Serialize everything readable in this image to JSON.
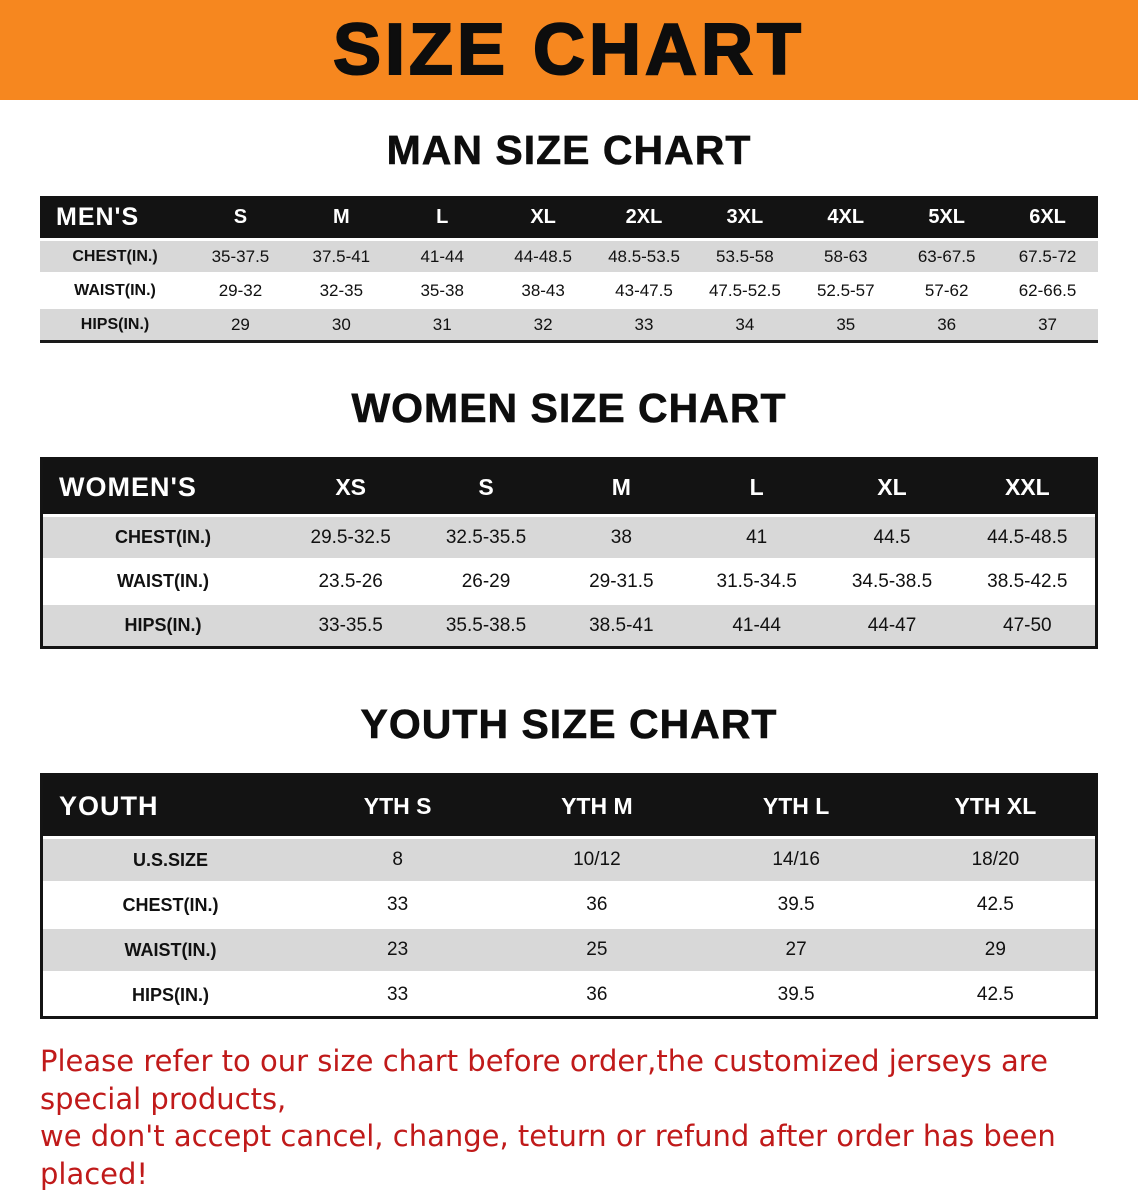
{
  "banner": {
    "title": "SIZE CHART"
  },
  "sections": [
    {
      "id": "men",
      "heading": "MAN SIZE CHART",
      "header": [
        "MEN'S",
        "S",
        "M",
        "L",
        "XL",
        "2XL",
        "3XL",
        "4XL",
        "5XL",
        "6XL"
      ],
      "rows": [
        [
          "CHEST(IN.)",
          "35-37.5",
          "37.5-41",
          "41-44",
          "44-48.5",
          "48.5-53.5",
          "53.5-58",
          "58-63",
          "63-67.5",
          "67.5-72"
        ],
        [
          "WAIST(IN.)",
          "29-32",
          "32-35",
          "35-38",
          "38-43",
          "43-47.5",
          "47.5-52.5",
          "52.5-57",
          "57-62",
          "62-66.5"
        ],
        [
          "HIPS(IN.)",
          "29",
          "30",
          "31",
          "32",
          "33",
          "34",
          "35",
          "36",
          "37"
        ]
      ]
    },
    {
      "id": "women",
      "heading": "WOMEN SIZE CHART",
      "header": [
        "WOMEN'S",
        "XS",
        "S",
        "M",
        "L",
        "XL",
        "XXL"
      ],
      "rows": [
        [
          "CHEST(IN.)",
          "29.5-32.5",
          "32.5-35.5",
          "38",
          "41",
          "44.5",
          "44.5-48.5"
        ],
        [
          "WAIST(IN.)",
          "23.5-26",
          "26-29",
          "29-31.5",
          "31.5-34.5",
          "34.5-38.5",
          "38.5-42.5"
        ],
        [
          "HIPS(IN.)",
          "33-35.5",
          "35.5-38.5",
          "38.5-41",
          "41-44",
          "44-47",
          "47-50"
        ]
      ]
    },
    {
      "id": "youth",
      "heading": "YOUTH SIZE CHART",
      "header": [
        "YOUTH",
        "YTH S",
        "YTH M",
        "YTH L",
        "YTH XL"
      ],
      "rows": [
        [
          "U.S.SIZE",
          "8",
          "10/12",
          "14/16",
          "18/20"
        ],
        [
          "CHEST(IN.)",
          "33",
          "36",
          "39.5",
          "42.5"
        ],
        [
          "WAIST(IN.)",
          "23",
          "25",
          "27",
          "29"
        ],
        [
          "HIPS(IN.)",
          "33",
          "36",
          "39.5",
          "42.5"
        ]
      ]
    }
  ],
  "footer_note": {
    "line1": "Please refer to our size chart before order,the customized jerseys are special products,",
    "line2": "we don't accept cancel, change, teturn or refund after order has been placed!"
  },
  "colors": {
    "banner_bg": "#f6871f",
    "header_bg": "#131313",
    "row_alt_bg": "#d8d8d8",
    "note_color": "#c01a1a"
  }
}
